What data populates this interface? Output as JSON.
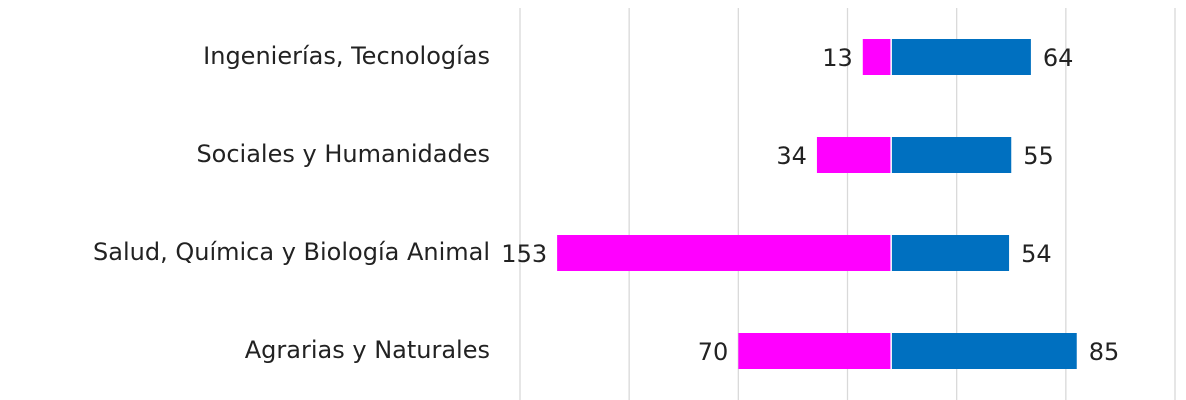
{
  "chart_data": {
    "type": "diverging-bar",
    "categories": [
      "Ingenierías, Tecnologías",
      "Sociales y Humanidades",
      "Salud, Química y Biología Animal",
      "Agrarias y Naturales"
    ],
    "series": [
      {
        "color": "#ff00ff",
        "values": [
          -13,
          -34,
          -153,
          -70
        ],
        "value_labels": [
          "13",
          "34",
          "153",
          "70"
        ]
      },
      {
        "color": "#0070c0",
        "values": [
          64,
          55,
          54,
          85
        ]
      }
    ],
    "xlim": [
      -170,
      130
    ],
    "xticks": [
      -170,
      -120,
      -70,
      -20,
      30,
      80,
      130
    ],
    "grid": true
  }
}
